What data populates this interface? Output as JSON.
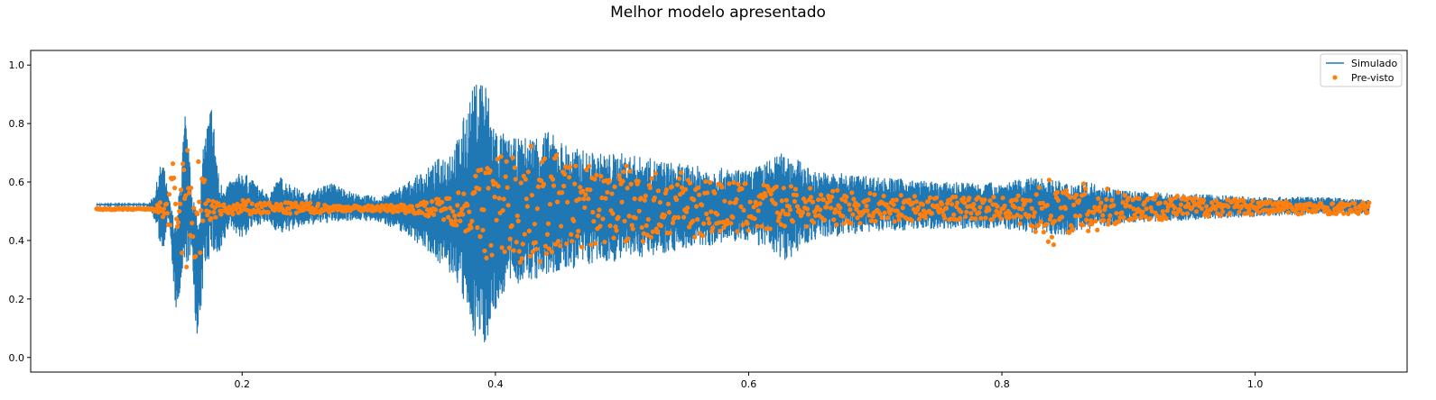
{
  "chart_data": {
    "type": "line",
    "title": "Melhor modelo apresentado",
    "xlabel": "",
    "ylabel": "",
    "xlim": [
      0.033,
      1.12
    ],
    "ylim": [
      -0.05,
      1.05
    ],
    "x_ticks": [
      0.2,
      0.4,
      0.6,
      0.8,
      1.0
    ],
    "x_tick_labels": [
      "0.2",
      "0.4",
      "0.6",
      "0.8",
      "1.0"
    ],
    "y_ticks": [
      0.0,
      0.2,
      0.4,
      0.6,
      0.8,
      1.0
    ],
    "y_tick_labels": [
      "0.0",
      "0.2",
      "0.4",
      "0.6",
      "0.8",
      "1.0"
    ],
    "grid": false,
    "legend": {
      "position": "top-right"
    },
    "series": [
      {
        "name": "Simulado",
        "kind": "line",
        "color": "#1f77b4",
        "x": [
          0.085,
          0.125,
          0.13,
          0.137,
          0.142,
          0.148,
          0.155,
          0.16,
          0.165,
          0.17,
          0.176,
          0.182,
          0.19,
          0.2,
          0.21,
          0.22,
          0.23,
          0.25,
          0.27,
          0.29,
          0.31,
          0.33,
          0.35,
          0.37,
          0.38,
          0.39,
          0.395,
          0.4,
          0.41,
          0.42,
          0.44,
          0.46,
          0.48,
          0.5,
          0.55,
          0.6,
          0.63,
          0.65,
          0.7,
          0.75,
          0.8,
          0.83,
          0.85,
          0.87,
          0.9,
          0.95,
          1.0,
          1.05,
          1.09
        ],
        "y_upper": [
          0.525,
          0.525,
          0.55,
          0.69,
          0.55,
          0.45,
          0.84,
          0.6,
          0.5,
          0.75,
          0.885,
          0.6,
          0.6,
          0.64,
          0.6,
          0.56,
          0.62,
          0.56,
          0.6,
          0.56,
          0.55,
          0.6,
          0.66,
          0.75,
          0.9,
          1.0,
          0.9,
          0.8,
          0.75,
          0.75,
          0.78,
          0.72,
          0.7,
          0.7,
          0.66,
          0.64,
          0.71,
          0.64,
          0.62,
          0.6,
          0.6,
          0.62,
          0.6,
          0.6,
          0.57,
          0.56,
          0.55,
          0.55,
          0.54
        ],
        "y_lower": [
          0.52,
          0.52,
          0.48,
          0.35,
          0.48,
          0.13,
          0.3,
          0.35,
          0.0,
          0.3,
          0.35,
          0.33,
          0.45,
          0.4,
          0.45,
          0.46,
          0.42,
          0.45,
          0.46,
          0.47,
          0.46,
          0.42,
          0.35,
          0.25,
          0.1,
          0.025,
          0.08,
          0.15,
          0.25,
          0.25,
          0.27,
          0.3,
          0.32,
          0.33,
          0.37,
          0.4,
          0.33,
          0.4,
          0.43,
          0.44,
          0.44,
          0.42,
          0.42,
          0.44,
          0.46,
          0.47,
          0.48,
          0.49,
          0.49
        ]
      },
      {
        "name": "Pre-visto",
        "kind": "markers",
        "color": "#ff7f0e",
        "x": [
          0.085,
          0.13,
          0.14,
          0.145,
          0.15,
          0.155,
          0.16,
          0.165,
          0.17,
          0.175,
          0.18,
          0.19,
          0.2,
          0.22,
          0.25,
          0.28,
          0.31,
          0.34,
          0.36,
          0.38,
          0.39,
          0.4,
          0.41,
          0.42,
          0.44,
          0.46,
          0.48,
          0.5,
          0.55,
          0.6,
          0.65,
          0.7,
          0.75,
          0.8,
          0.82,
          0.84,
          0.85,
          0.86,
          0.87,
          0.88,
          0.9,
          0.95,
          1.0,
          1.05,
          1.09
        ],
        "y_upper": [
          0.51,
          0.51,
          0.55,
          0.68,
          0.5,
          0.82,
          0.6,
          0.76,
          0.62,
          0.55,
          0.53,
          0.52,
          0.54,
          0.53,
          0.53,
          0.52,
          0.52,
          0.53,
          0.55,
          0.6,
          0.68,
          0.72,
          0.7,
          0.74,
          0.7,
          0.68,
          0.66,
          0.66,
          0.63,
          0.6,
          0.58,
          0.56,
          0.55,
          0.55,
          0.56,
          0.62,
          0.58,
          0.56,
          0.64,
          0.58,
          0.57,
          0.55,
          0.54,
          0.53,
          0.53
        ],
        "y_lower": [
          0.505,
          0.505,
          0.46,
          0.36,
          0.44,
          0.23,
          0.35,
          0.24,
          0.42,
          0.46,
          0.48,
          0.49,
          0.48,
          0.49,
          0.49,
          0.5,
          0.5,
          0.49,
          0.47,
          0.42,
          0.34,
          0.32,
          0.34,
          0.3,
          0.33,
          0.36,
          0.38,
          0.38,
          0.41,
          0.42,
          0.45,
          0.46,
          0.47,
          0.47,
          0.45,
          0.38,
          0.42,
          0.44,
          0.38,
          0.44,
          0.46,
          0.48,
          0.49,
          0.49,
          0.49
        ]
      }
    ]
  }
}
